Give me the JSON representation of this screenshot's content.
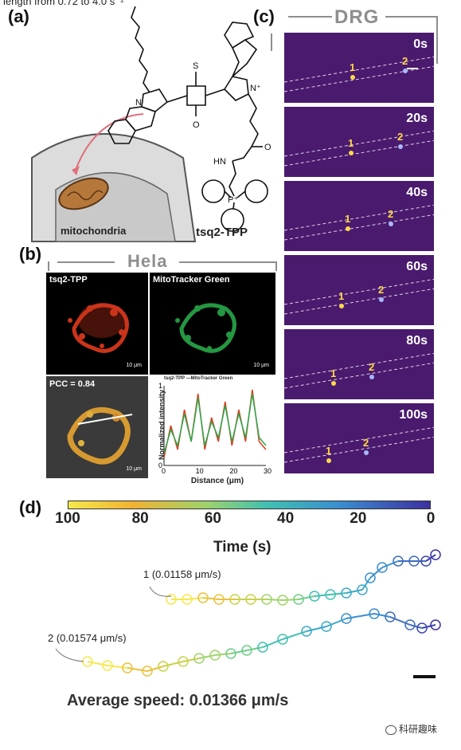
{
  "top_strip_text": "length from 0.72 to 4.0 s⁻¹",
  "panels": {
    "a": {
      "label": "(a)",
      "mitochondria_label": "mitochondria",
      "compound_label": "tsq2-TPP",
      "atom_S": "S",
      "atom_O": "O",
      "atom_N": "N",
      "atom_Nplus": "N⁺",
      "atom_HN": "HN",
      "atom_O2": "O",
      "atom_Pplus": "P⁺"
    },
    "b": {
      "label": "(b)",
      "title": "Hela",
      "tile_labels": [
        "tsq2-TPP",
        "MitoTracker Green"
      ],
      "pcc": "PCC = 0.84",
      "scale_bar": "10 μm",
      "profile_legend": "tsq2-TPP  —MitoTracker Green",
      "profile_ylabel": "Normalized intensity",
      "profile_xlabel": "Distance (μm)",
      "profile_xticks": [
        "0",
        "10",
        "20",
        "30"
      ],
      "profile_yticks": [
        "0",
        "1"
      ],
      "colors": {
        "red": "#e03a1e",
        "green": "#2aa84a"
      }
    },
    "c": {
      "label": "(c)",
      "title": "DRG",
      "frames": [
        {
          "time": "0s",
          "m1": "1",
          "m2": "2"
        },
        {
          "time": "20s",
          "m1": "1",
          "m2": "2"
        },
        {
          "time": "40s",
          "m1": "1",
          "m2": "2"
        },
        {
          "time": "60s",
          "m1": "1",
          "m2": "2"
        },
        {
          "time": "80s",
          "m1": "1",
          "m2": "2"
        },
        {
          "time": "100s",
          "m1": "1",
          "m2": "2"
        }
      ],
      "frame_color": "#4a1a6e"
    },
    "d": {
      "label": "(d)",
      "colorbar_ticks": [
        "100",
        "80",
        "60",
        "40",
        "20",
        "0"
      ],
      "colorbar_title": "Time (s)",
      "track1_label": "1 (0.01158 μm/s)",
      "track2_label": "2 (0.01574 μm/s)",
      "average_speed": "Average speed: 0.01366 μm/s"
    }
  },
  "watermark": "科研趣味",
  "chart_data": {
    "type": "line",
    "title": "",
    "xlabel": "Distance (μm)",
    "ylabel": "Normalized intensity",
    "xlim": [
      0,
      30
    ],
    "ylim": [
      0,
      1
    ],
    "series": [
      {
        "name": "tsq2-TPP",
        "x": [
          0,
          2,
          4,
          6,
          8,
          10,
          12,
          14,
          16,
          18,
          20,
          22,
          24,
          26,
          28,
          30
        ],
        "values": [
          0.1,
          0.5,
          0.2,
          0.7,
          0.3,
          0.9,
          0.2,
          0.6,
          0.3,
          0.8,
          0.25,
          0.7,
          0.3,
          0.95,
          0.3,
          0.2
        ]
      },
      {
        "name": "MitoTracker Green",
        "x": [
          0,
          2,
          4,
          6,
          8,
          10,
          12,
          14,
          16,
          18,
          20,
          22,
          24,
          26,
          28,
          30
        ],
        "values": [
          0.15,
          0.45,
          0.25,
          0.65,
          0.3,
          0.85,
          0.25,
          0.55,
          0.35,
          0.75,
          0.3,
          0.65,
          0.35,
          0.9,
          0.35,
          0.25
        ]
      }
    ]
  }
}
